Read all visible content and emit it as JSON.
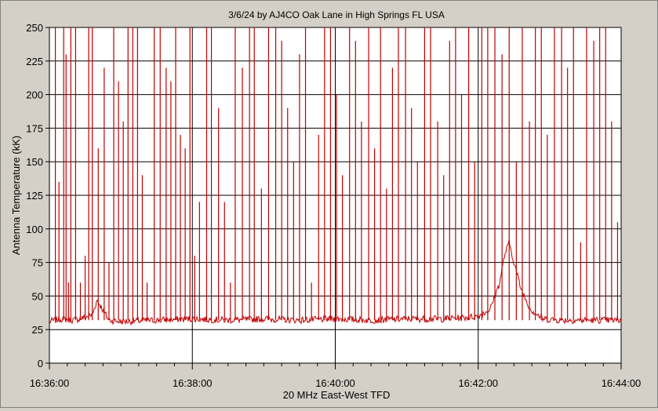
{
  "chart_data": {
    "type": "line",
    "title": "3/6/24  by  AJ4CO Oak Lane  in  High Springs FL USA",
    "xlabel": "20 MHz East-West TFD",
    "ylabel": "Antenna Temperature (kK)",
    "xlim": [
      "16:36:00",
      "16:44:00"
    ],
    "ylim": [
      0,
      250
    ],
    "x_ticks": [
      "16:36:00",
      "16:38:00",
      "16:40:00",
      "16:42:00",
      "16:44:00"
    ],
    "y_ticks": [
      "0",
      "25",
      "50",
      "75",
      "100",
      "125",
      "150",
      "175",
      "200",
      "225",
      "250"
    ],
    "grid": true,
    "background_color": "#ffffff",
    "series": [
      {
        "color": "#c00000",
        "baseline_kK": 32,
        "points": [
          [
            "16:36:00",
            31
          ],
          [
            "16:36:10",
            33
          ],
          [
            "16:36:20",
            32
          ],
          [
            "16:36:30",
            34
          ],
          [
            "16:36:36",
            36
          ],
          [
            "16:36:40",
            47
          ],
          [
            "16:36:44",
            41
          ],
          [
            "16:36:50",
            32
          ],
          [
            "16:37:00",
            31
          ],
          [
            "16:37:30",
            32
          ],
          [
            "16:38:00",
            33
          ],
          [
            "16:38:30",
            32
          ],
          [
            "16:39:00",
            33
          ],
          [
            "16:39:30",
            32
          ],
          [
            "16:40:00",
            33
          ],
          [
            "16:40:30",
            32
          ],
          [
            "16:41:00",
            33
          ],
          [
            "16:41:30",
            33
          ],
          [
            "16:41:50",
            34
          ],
          [
            "16:42:00",
            35
          ],
          [
            "16:42:10",
            40
          ],
          [
            "16:42:18",
            60
          ],
          [
            "16:42:22",
            80
          ],
          [
            "16:42:26",
            90
          ],
          [
            "16:42:30",
            75
          ],
          [
            "16:42:36",
            55
          ],
          [
            "16:42:44",
            40
          ],
          [
            "16:42:54",
            33
          ],
          [
            "16:43:10",
            32
          ],
          [
            "16:43:30",
            32
          ],
          [
            "16:44:00",
            32
          ]
        ],
        "spikes_note": "",
        "spikes": [
          [
            "16:36:05",
            250
          ],
          [
            "16:36:08",
            135
          ],
          [
            "16:36:12",
            250
          ],
          [
            "16:36:14",
            230
          ],
          [
            "16:36:16",
            60
          ],
          [
            "16:36:18",
            250
          ],
          [
            "16:36:22",
            250
          ],
          [
            "16:36:26",
            60
          ],
          [
            "16:36:30",
            80
          ],
          [
            "16:36:33",
            250
          ],
          [
            "16:36:36",
            250
          ],
          [
            "16:36:41",
            160
          ],
          [
            "16:36:46",
            220
          ],
          [
            "16:36:50",
            75
          ],
          [
            "16:36:54",
            250
          ],
          [
            "16:36:58",
            210
          ],
          [
            "16:37:02",
            180
          ],
          [
            "16:37:06",
            250
          ],
          [
            "16:37:10",
            250
          ],
          [
            "16:37:14",
            250
          ],
          [
            "16:37:18",
            140
          ],
          [
            "16:37:22",
            60
          ],
          [
            "16:37:28",
            250
          ],
          [
            "16:37:33",
            250
          ],
          [
            "16:37:38",
            220
          ],
          [
            "16:37:42",
            210
          ],
          [
            "16:37:46",
            250
          ],
          [
            "16:37:50",
            170
          ],
          [
            "16:37:54",
            160
          ],
          [
            "16:37:58",
            250
          ],
          [
            "16:38:02",
            80
          ],
          [
            "16:38:06",
            120
          ],
          [
            "16:38:12",
            250
          ],
          [
            "16:38:16",
            250
          ],
          [
            "16:38:22",
            190
          ],
          [
            "16:38:27",
            120
          ],
          [
            "16:38:32",
            60
          ],
          [
            "16:38:36",
            250
          ],
          [
            "16:38:42",
            220
          ],
          [
            "16:38:48",
            250
          ],
          [
            "16:38:52",
            250
          ],
          [
            "16:38:58",
            130
          ],
          [
            "16:39:04",
            250
          ],
          [
            "16:39:10",
            250
          ],
          [
            "16:39:15",
            240
          ],
          [
            "16:39:20",
            190
          ],
          [
            "16:39:25",
            150
          ],
          [
            "16:39:30",
            230
          ],
          [
            "16:39:35",
            250
          ],
          [
            "16:39:40",
            60
          ],
          [
            "16:39:46",
            170
          ],
          [
            "16:39:51",
            250
          ],
          [
            "16:39:56",
            250
          ],
          [
            "16:40:01",
            200
          ],
          [
            "16:40:06",
            140
          ],
          [
            "16:40:12",
            250
          ],
          [
            "16:40:17",
            240
          ],
          [
            "16:40:22",
            180
          ],
          [
            "16:40:28",
            250
          ],
          [
            "16:40:33",
            160
          ],
          [
            "16:40:38",
            250
          ],
          [
            "16:40:43",
            130
          ],
          [
            "16:40:48",
            220
          ],
          [
            "16:40:53",
            250
          ],
          [
            "16:40:59",
            250
          ],
          [
            "16:41:04",
            190
          ],
          [
            "16:41:09",
            150
          ],
          [
            "16:41:15",
            250
          ],
          [
            "16:41:20",
            250
          ],
          [
            "16:41:26",
            180
          ],
          [
            "16:41:31",
            140
          ],
          [
            "16:41:36",
            240
          ],
          [
            "16:41:41",
            250
          ],
          [
            "16:41:46",
            200
          ],
          [
            "16:41:52",
            250
          ],
          [
            "16:41:57",
            150
          ],
          [
            "16:42:03",
            250
          ],
          [
            "16:42:08",
            250
          ],
          [
            "16:42:14",
            250
          ],
          [
            "16:42:20",
            230
          ],
          [
            "16:42:26",
            250
          ],
          [
            "16:42:32",
            150
          ],
          [
            "16:42:37",
            250
          ],
          [
            "16:42:43",
            180
          ],
          [
            "16:42:48",
            250
          ],
          [
            "16:42:53",
            250
          ],
          [
            "16:42:58",
            170
          ],
          [
            "16:43:04",
            250
          ],
          [
            "16:43:10",
            250
          ],
          [
            "16:43:15",
            220
          ],
          [
            "16:43:20",
            250
          ],
          [
            "16:43:26",
            90
          ],
          [
            "16:43:31",
            250
          ],
          [
            "16:43:37",
            240
          ],
          [
            "16:43:42",
            250
          ],
          [
            "16:43:47",
            250
          ],
          [
            "16:43:52",
            180
          ],
          [
            "16:43:57",
            105
          ]
        ]
      }
    ]
  }
}
